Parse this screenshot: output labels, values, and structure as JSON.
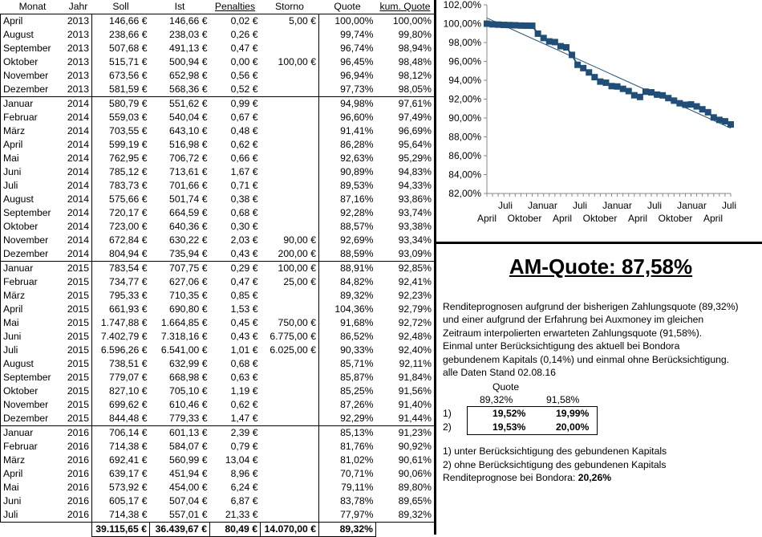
{
  "table": {
    "headers": [
      "Monat",
      "Jahr",
      "Soll",
      "Ist",
      "Penalties",
      "Storno",
      "Quote",
      "kum. Quote"
    ],
    "rows": [
      {
        "m": "April",
        "y": "2013",
        "s": "146,66 €",
        "i": "146,66 €",
        "p": "0,02 €",
        "st": "5,00 €",
        "q": "100,00%",
        "k": "100,00%"
      },
      {
        "m": "August",
        "y": "2013",
        "s": "238,66 €",
        "i": "238,03 €",
        "p": "0,26 €",
        "st": "",
        "q": "99,74%",
        "k": "99,80%"
      },
      {
        "m": "September",
        "y": "2013",
        "s": "507,68 €",
        "i": "491,13 €",
        "p": "0,47 €",
        "st": "",
        "q": "96,74%",
        "k": "98,94%"
      },
      {
        "m": "Oktober",
        "y": "2013",
        "s": "515,71 €",
        "i": "500,94 €",
        "p": "0,00 €",
        "st": "100,00 €",
        "q": "96,45%",
        "k": "98,48%"
      },
      {
        "m": "November",
        "y": "2013",
        "s": "673,56 €",
        "i": "652,98 €",
        "p": "0,56 €",
        "st": "",
        "q": "96,94%",
        "k": "98,12%"
      },
      {
        "m": "Dezember",
        "y": "2013",
        "s": "581,59 €",
        "i": "568,36 €",
        "p": "0,52 €",
        "st": "",
        "q": "97,73%",
        "k": "98,05%"
      },
      {
        "m": "Januar",
        "y": "2014",
        "s": "580,79 €",
        "i": "551,62 €",
        "p": "0,99 €",
        "st": "",
        "q": "94,98%",
        "k": "97,61%"
      },
      {
        "m": "Februar",
        "y": "2014",
        "s": "559,03 €",
        "i": "540,04 €",
        "p": "0,67 €",
        "st": "",
        "q": "96,60%",
        "k": "97,49%"
      },
      {
        "m": "März",
        "y": "2014",
        "s": "703,55 €",
        "i": "643,10 €",
        "p": "0,48 €",
        "st": "",
        "q": "91,41%",
        "k": "96,69%"
      },
      {
        "m": "April",
        "y": "2014",
        "s": "599,19 €",
        "i": "516,98 €",
        "p": "0,62 €",
        "st": "",
        "q": "86,28%",
        "k": "95,64%"
      },
      {
        "m": "Mai",
        "y": "2014",
        "s": "762,95 €",
        "i": "706,72 €",
        "p": "0,66 €",
        "st": "",
        "q": "92,63%",
        "k": "95,29%"
      },
      {
        "m": "Juni",
        "y": "2014",
        "s": "785,12 €",
        "i": "713,61 €",
        "p": "1,67 €",
        "st": "",
        "q": "90,89%",
        "k": "94,83%"
      },
      {
        "m": "Juli",
        "y": "2014",
        "s": "783,73 €",
        "i": "701,66 €",
        "p": "0,71 €",
        "st": "",
        "q": "89,53%",
        "k": "94,33%"
      },
      {
        "m": "August",
        "y": "2014",
        "s": "575,66 €",
        "i": "501,74 €",
        "p": "0,38 €",
        "st": "",
        "q": "87,16%",
        "k": "93,86%"
      },
      {
        "m": "September",
        "y": "2014",
        "s": "720,17 €",
        "i": "664,59 €",
        "p": "0,68 €",
        "st": "",
        "q": "92,28%",
        "k": "93,74%"
      },
      {
        "m": "Oktober",
        "y": "2014",
        "s": "723,00 €",
        "i": "640,36 €",
        "p": "0,30 €",
        "st": "",
        "q": "88,57%",
        "k": "93,38%"
      },
      {
        "m": "November",
        "y": "2014",
        "s": "672,84 €",
        "i": "630,22 €",
        "p": "2,03 €",
        "st": "90,00 €",
        "q": "92,69%",
        "k": "93,34%"
      },
      {
        "m": "Dezember",
        "y": "2014",
        "s": "804,94 €",
        "i": "735,94 €",
        "p": "0,43 €",
        "st": "200,00 €",
        "q": "88,59%",
        "k": "93,09%"
      },
      {
        "m": "Januar",
        "y": "2015",
        "s": "783,54 €",
        "i": "707,75 €",
        "p": "0,29 €",
        "st": "100,00 €",
        "q": "88,91%",
        "k": "92,85%"
      },
      {
        "m": "Februar",
        "y": "2015",
        "s": "734,77 €",
        "i": "627,06 €",
        "p": "0,47 €",
        "st": "25,00 €",
        "q": "84,82%",
        "k": "92,41%"
      },
      {
        "m": "März",
        "y": "2015",
        "s": "795,33 €",
        "i": "710,35 €",
        "p": "0,85 €",
        "st": "",
        "q": "89,32%",
        "k": "92,23%"
      },
      {
        "m": "April",
        "y": "2015",
        "s": "661,93 €",
        "i": "690,80 €",
        "p": "1,53 €",
        "st": "",
        "q": "104,36%",
        "k": "92,79%"
      },
      {
        "m": "Mai",
        "y": "2015",
        "s": "1.747,88 €",
        "i": "1.664,85 €",
        "p": "0,45 €",
        "st": "750,00 €",
        "q": "91,68%",
        "k": "92,72%"
      },
      {
        "m": "Juni",
        "y": "2015",
        "s": "7.402,79 €",
        "i": "7.318,16 €",
        "p": "0,43 €",
        "st": "6.775,00 €",
        "q": "86,52%",
        "k": "92,48%"
      },
      {
        "m": "Juli",
        "y": "2015",
        "s": "6.596,26 €",
        "i": "6.541,00 €",
        "p": "1,01 €",
        "st": "6.025,00 €",
        "q": "90,33%",
        "k": "92,40%"
      },
      {
        "m": "August",
        "y": "2015",
        "s": "738,51 €",
        "i": "632,99 €",
        "p": "0,68 €",
        "st": "",
        "q": "85,71%",
        "k": "92,11%"
      },
      {
        "m": "September",
        "y": "2015",
        "s": "779,07 €",
        "i": "668,98 €",
        "p": "0,63 €",
        "st": "",
        "q": "85,87%",
        "k": "91,84%"
      },
      {
        "m": "Oktober",
        "y": "2015",
        "s": "827,10 €",
        "i": "705,10 €",
        "p": "1,19 €",
        "st": "",
        "q": "85,25%",
        "k": "91,56%"
      },
      {
        "m": "November",
        "y": "2015",
        "s": "699,62 €",
        "i": "610,46 €",
        "p": "0,62 €",
        "st": "",
        "q": "87,26%",
        "k": "91,40%"
      },
      {
        "m": "Dezember",
        "y": "2015",
        "s": "844,48 €",
        "i": "779,33 €",
        "p": "1,47 €",
        "st": "",
        "q": "92,29%",
        "k": "91,44%"
      },
      {
        "m": "Januar",
        "y": "2016",
        "s": "706,14 €",
        "i": "601,13 €",
        "p": "2,39 €",
        "st": "",
        "q": "85,13%",
        "k": "91,23%"
      },
      {
        "m": "Februar",
        "y": "2016",
        "s": "714,38 €",
        "i": "584,07 €",
        "p": "0,79 €",
        "st": "",
        "q": "81,76%",
        "k": "90,92%"
      },
      {
        "m": "März",
        "y": "2016",
        "s": "692,41 €",
        "i": "560,99 €",
        "p": "13,04 €",
        "st": "",
        "q": "81,02%",
        "k": "90,61%"
      },
      {
        "m": "April",
        "y": "2016",
        "s": "639,17 €",
        "i": "451,94 €",
        "p": "8,96 €",
        "st": "",
        "q": "70,71%",
        "k": "90,06%"
      },
      {
        "m": "Mai",
        "y": "2016",
        "s": "573,92 €",
        "i": "454,00 €",
        "p": "6,24 €",
        "st": "",
        "q": "79,11%",
        "k": "89,80%"
      },
      {
        "m": "Juni",
        "y": "2016",
        "s": "605,17 €",
        "i": "507,04 €",
        "p": "6,87 €",
        "st": "",
        "q": "83,78%",
        "k": "89,65%"
      },
      {
        "m": "Juli",
        "y": "2016",
        "s": "714,38 €",
        "i": "557,01 €",
        "p": "21,33 €",
        "st": "",
        "q": "77,97%",
        "k": "89,32%"
      }
    ],
    "totals": {
      "s": "39.115,65 €",
      "i": "36.439,67 €",
      "p": "80,49 €",
      "st": "14.070,00 €",
      "q": "89,32%"
    }
  },
  "chart_data": {
    "type": "line",
    "title": "",
    "xlabel": "",
    "ylabel": "",
    "ylim": [
      82,
      102
    ],
    "yticks": [
      "82,00%",
      "84,00%",
      "86,00%",
      "88,00%",
      "90,00%",
      "92,00%",
      "94,00%",
      "96,00%",
      "98,00%",
      "100,00%",
      "102,00%"
    ],
    "xticks_upper": [
      "Juli",
      "Januar",
      "Juli",
      "Januar",
      "Juli",
      "Januar",
      "Juli"
    ],
    "xticks_lower": [
      "April",
      "Oktober",
      "April",
      "Oktober",
      "April",
      "Oktober",
      "April"
    ],
    "series": [
      {
        "values": [
          100.0,
          99.93,
          99.9,
          99.87,
          99.85,
          99.83,
          99.8,
          99.79,
          99.78,
          98.94,
          98.48,
          98.12,
          98.05,
          97.61,
          97.49,
          96.69,
          95.64,
          95.29,
          94.83,
          94.33,
          93.86,
          93.74,
          93.38,
          93.34,
          93.09,
          92.85,
          92.41,
          92.23,
          92.79,
          92.72,
          92.48,
          92.4,
          92.11,
          91.84,
          91.56,
          91.4,
          91.44,
          91.23,
          90.92,
          90.61,
          90.06,
          89.8,
          89.65,
          89.32
        ],
        "color": "#1f4e79",
        "marker": "square"
      }
    ],
    "trendline": {
      "color": "#1f4e79"
    },
    "grid": false,
    "legend": "none"
  },
  "info": {
    "title": "AM-Quote: 87,58%",
    "para": [
      "Renditeprognosen aufgrund der bisherigen Zahlungsquote (89,32%)",
      "und einer aufgrund der Erfahrung bei Auxmoney im gleichen",
      "Zeitraum interpolierten erwarteten Zahlungsquote (91,58%).",
      "Einmal unter Berücksichtigung des aktuell bei Bondora",
      "gebundenem Kapitals (0,14%) und einmal ohne Berücksichtigung.",
      "alle Daten Stand 02.08.16"
    ],
    "quote_label": "Quote",
    "q1": "89,32%",
    "q2": "91,58%",
    "r1_label": "1)",
    "r1_a": "19,52%",
    "r1_b": "19,99%",
    "r2_label": "2)",
    "r2_a": "19,53%",
    "r2_b": "20,00%",
    "note1": "1) unter Berücksichtigung des gebundenen Kapitals",
    "note2": "2) ohne Berücksichtigung des gebundenen Kapitals",
    "bondora_label": "Renditeprognose bei Bondora: ",
    "bondora_value": "20,26%"
  }
}
